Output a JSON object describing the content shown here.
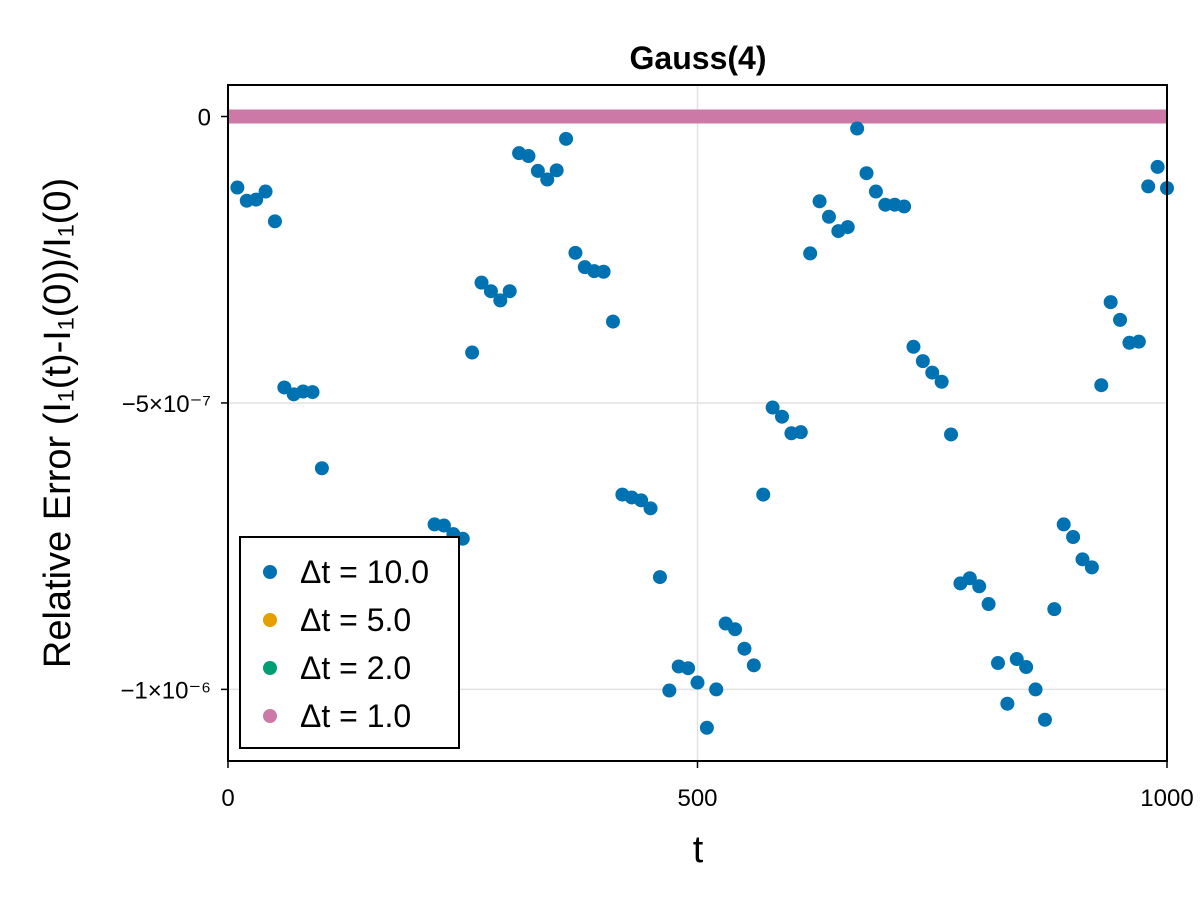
{
  "chart_data": {
    "type": "scatter",
    "title": "Gauss(4)",
    "xlabel": "t",
    "ylabel": "Relative Error (I₁(t)-I₁(0))/I₁(0)",
    "xlim": [
      0,
      1000
    ],
    "ylim": [
      -1.125e-06,
      5.5e-08
    ],
    "x_ticks": [
      {
        "value": 0,
        "label": "0"
      },
      {
        "value": 500,
        "label": "500"
      },
      {
        "value": 1000,
        "label": "1000"
      }
    ],
    "y_ticks": [
      {
        "value": 0,
        "label": "0"
      },
      {
        "value": -5e-07,
        "label": "−5×10⁻⁷"
      },
      {
        "value": -1e-06,
        "label": "−1×10⁻⁶"
      }
    ],
    "grid": true,
    "legend_position": "bottom-left",
    "series": [
      {
        "name": "Δt = 10.0",
        "color": "#0072b2",
        "x": [
          10,
          20,
          30,
          40,
          50,
          60,
          70,
          80,
          90,
          100,
          220,
          230,
          240,
          250,
          260,
          270,
          280,
          290,
          300,
          310,
          320,
          330,
          340,
          350,
          360,
          370,
          380,
          390,
          400,
          410,
          420,
          430,
          440,
          450,
          460,
          470,
          480,
          490,
          500,
          510,
          520,
          530,
          540,
          550,
          560,
          570,
          580,
          590,
          600,
          610,
          620,
          630,
          640,
          650,
          660,
          670,
          680,
          690,
          700,
          710,
          720,
          730,
          740,
          750,
          760,
          770,
          780,
          790,
          800,
          810,
          820,
          830,
          840,
          850,
          860,
          870,
          880,
          890,
          900,
          910,
          920,
          930,
          940,
          950,
          960,
          970,
          980,
          990,
          1000
        ],
        "y": [
          -1.24e-07,
          -1.47e-07,
          -1.45e-07,
          -1.31e-07,
          -1.83e-07,
          -4.73e-07,
          -4.85e-07,
          -4.8e-07,
          -4.81e-07,
          -6.14e-07,
          -7.12e-07,
          -7.14e-07,
          -7.29e-07,
          -7.37e-07,
          -4.12e-07,
          -2.9e-07,
          -3.05e-07,
          -3.21e-07,
          -3.05e-07,
          -6.4e-08,
          -6.9e-08,
          -9.5e-08,
          -1.1e-07,
          -9.4e-08,
          -3.9e-08,
          -2.38e-07,
          -2.63e-07,
          -2.7e-07,
          -2.71e-07,
          -3.58e-07,
          -6.6e-07,
          -6.65e-07,
          -6.7e-07,
          -6.84e-07,
          -8.04e-07,
          -1.002e-06,
          -9.6e-07,
          -9.63e-07,
          -9.88e-07,
          -1.067e-06,
          -1e-06,
          -8.85e-07,
          -8.95e-07,
          -9.29e-07,
          -9.58e-07,
          -6.6e-07,
          -5.08e-07,
          -5.24e-07,
          -5.53e-07,
          -5.51e-07,
          -2.39e-07,
          -1.48e-07,
          -1.75e-07,
          -2e-07,
          -1.93e-07,
          -2.1e-08,
          -9.9e-08,
          -1.31e-07,
          -1.54e-07,
          -1.54e-07,
          -1.57e-07,
          -4.02e-07,
          -4.27e-07,
          -4.47e-07,
          -4.63e-07,
          -5.55e-07,
          -8.15e-07,
          -8.06e-07,
          -8.2e-07,
          -8.51e-07,
          -9.54e-07,
          -1.025e-06,
          -9.47e-07,
          -9.61e-07,
          -1e-06,
          -1.053e-06,
          -8.6e-07,
          -7.12e-07,
          -7.34e-07,
          -7.73e-07,
          -7.87e-07,
          -4.69e-07,
          -3.24e-07,
          -3.55e-07,
          -3.95e-07,
          -3.93e-07,
          -1.22e-07,
          -8.8e-08,
          -1.25e-07
        ]
      },
      {
        "name": "Δt = 5.0",
        "color": "#e69f00",
        "x": [
          0,
          1000
        ],
        "y": [
          0,
          0
        ]
      },
      {
        "name": "Δt = 2.0",
        "color": "#009e73",
        "x": [
          0,
          1000
        ],
        "y": [
          0,
          0
        ]
      },
      {
        "name": "Δt = 1.0",
        "color": "#cc79a7",
        "x": [
          0,
          1000
        ],
        "y": [
          0,
          0
        ]
      }
    ]
  }
}
